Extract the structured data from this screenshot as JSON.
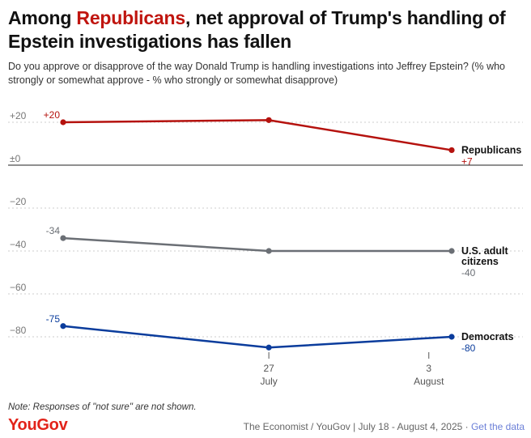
{
  "header": {
    "title_prefix": "Among ",
    "title_highlight": "Republicans",
    "title_suffix": ", net approval of Trump's handling of Epstein investigations has fallen",
    "subtitle": "Do you approve or disapprove of the way Donald Trump is handling investigations into Jeffrey Epstein? (% who strongly or somewhat approve - % who strongly or somewhat disapprove)"
  },
  "footer": {
    "note": "Note: Responses of \"not sure\" are not shown.",
    "brand": "YouGov",
    "source": "The Economist / YouGov | July 18 - August 4, 2025 · ",
    "link": "Get the data"
  },
  "colors": {
    "republicans": "#b5120e",
    "adults": "#6b6f75",
    "democrats": "#0a3c9c",
    "grid": "#cccccc",
    "zero": "#222222",
    "tick": "#777777"
  },
  "chart_data": {
    "type": "line",
    "title": "Among Republicans, net approval of Trump's handling of Epstein investigations has fallen",
    "x": [
      "2025-07-18",
      "2025-07-27",
      "2025-08-04"
    ],
    "x_ticks": [
      {
        "date": "2025-07-27",
        "day": "27",
        "month": "July"
      },
      {
        "date": "2025-08-03",
        "day": "3",
        "month": "August"
      }
    ],
    "y_ticks": [
      {
        "value": 20,
        "label": "+20"
      },
      {
        "value": 0,
        "label": "±0"
      },
      {
        "value": -20,
        "label": "−20"
      },
      {
        "value": -40,
        "label": "−40"
      },
      {
        "value": -60,
        "label": "−60"
      },
      {
        "value": -80,
        "label": "−80"
      }
    ],
    "ylim": [
      -97,
      20
    ],
    "series": [
      {
        "key": "republicans",
        "name": "Republicans",
        "name_lines": [
          "Republicans"
        ],
        "values": [
          20,
          21,
          7
        ],
        "start_label": "+20",
        "end_label": "+7"
      },
      {
        "key": "adults",
        "name": "U.S. adult citizens",
        "name_lines": [
          "U.S. adult",
          "citizens"
        ],
        "values": [
          -34,
          -40,
          -40
        ],
        "start_label": "-34",
        "end_label": "-40"
      },
      {
        "key": "democrats",
        "name": "Democrats",
        "name_lines": [
          "Democrats"
        ],
        "values": [
          -75,
          -85,
          -80
        ],
        "start_label": "-75",
        "end_label": "-80"
      }
    ]
  }
}
